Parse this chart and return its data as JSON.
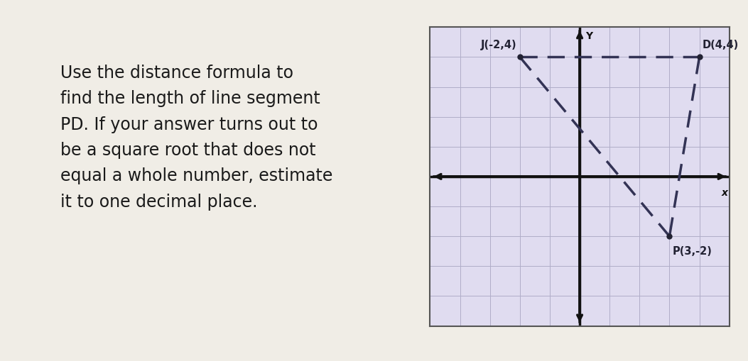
{
  "title_text": "Use the distance formula to\nfind the length of line segment\nPD. If your answer turns out to\nbe a square root that does not\nequal a whole number, estimate\nit to one decimal place.",
  "title_fontsize": 17,
  "title_color": "#1a1a1a",
  "card_color": "#f0ede6",
  "left_stripe_color": "#4a90c8",
  "grid_bg_color": "#e0dcf0",
  "grid_border_color": "#555555",
  "points": {
    "J": [
      -2,
      4
    ],
    "D": [
      4,
      4
    ],
    "P": [
      3,
      -2
    ]
  },
  "point_labels": {
    "J": "J(-2,4)",
    "D": "D(4,4)",
    "P": "P(3,-2)"
  },
  "dashed_lines": [
    [
      [
        -2,
        4
      ],
      [
        4,
        4
      ]
    ],
    [
      [
        4,
        4
      ],
      [
        3,
        -2
      ]
    ],
    [
      [
        -2,
        4
      ],
      [
        3,
        -2
      ]
    ]
  ],
  "axis_color": "#111111",
  "dash_color": "#333355",
  "point_color": "#222233",
  "xlim": [
    -5,
    5
  ],
  "ylim": [
    -5,
    5
  ],
  "label_fontsize": 10.5,
  "axis_label_fontsize": 10
}
